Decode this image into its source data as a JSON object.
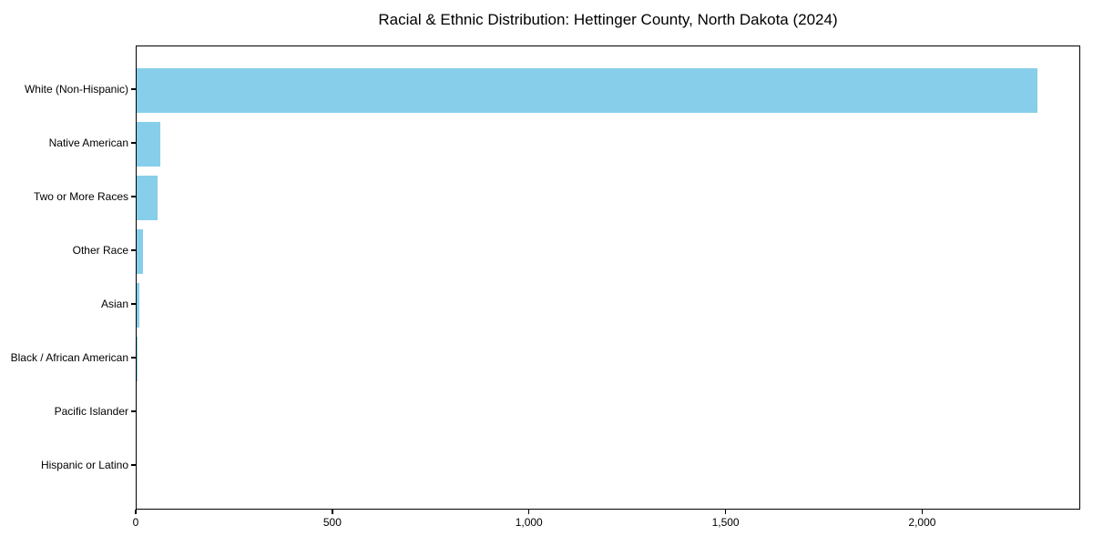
{
  "title": "Racial & Ethnic Distribution: Hettinger County, North Dakota (2024)",
  "chart_data": {
    "type": "bar",
    "orientation": "horizontal",
    "title": "Racial & Ethnic Distribution: Hettinger County, North Dakota (2024)",
    "categories": [
      "White (Non-Hispanic)",
      "Native American",
      "Two or More Races",
      "Other Race",
      "Asian",
      "Black / African American",
      "Pacific Islander",
      "Hispanic or Latino"
    ],
    "values": [
      2290,
      60,
      53,
      16,
      7,
      2,
      0,
      0
    ],
    "bar_color": "#87ceeb",
    "xlabel": "",
    "ylabel": "",
    "xlim": [
      0,
      2402
    ],
    "xticks": [
      0,
      500,
      1000,
      1500,
      2000
    ],
    "xtick_labels": [
      "0",
      "500",
      "1,000",
      "1,500",
      "2,000"
    ],
    "grid": false,
    "legend": null,
    "background_color": "#ffffff",
    "text_color": "#000000"
  }
}
